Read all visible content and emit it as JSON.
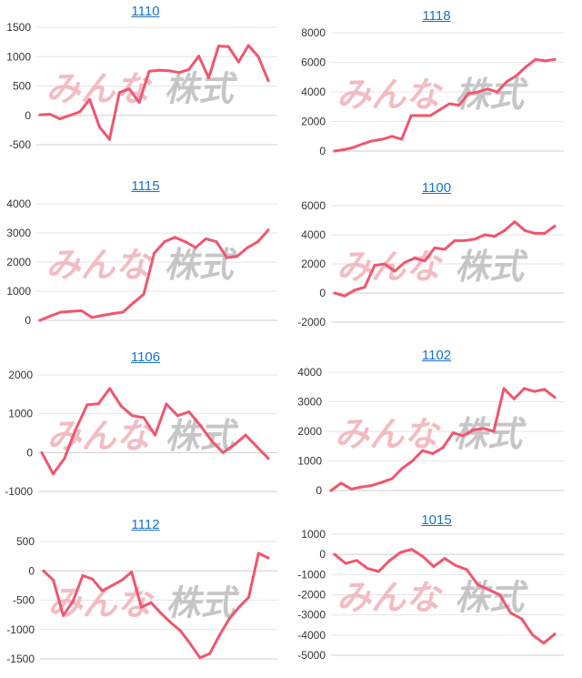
{
  "colors": {
    "line": "#f0566f",
    "grid": "#e6e6e6",
    "axis": "#cfcfcf",
    "link": "#1a73c8",
    "watermark_left": "#f2b1b8",
    "watermark_right": "#bdbdbd"
  },
  "watermark": {
    "left": "みんな",
    "right": "株式"
  },
  "chart_data": [
    {
      "type": "line",
      "title": "1110",
      "ylim": [
        -500,
        1500
      ],
      "yticks": [
        "1500",
        "1000",
        "500",
        "0",
        "-500"
      ],
      "ytick_values": [
        1500,
        1000,
        500,
        0,
        -500
      ],
      "values": [
        10,
        20,
        -60,
        0,
        60,
        270,
        -200,
        -410,
        390,
        450,
        220,
        750,
        770,
        760,
        730,
        780,
        1010,
        640,
        1180,
        1170,
        910,
        1190,
        1000,
        590
      ]
    },
    {
      "type": "line",
      "title": "1118",
      "ylim": [
        0,
        8000
      ],
      "yticks": [
        "8000",
        "6000",
        "4000",
        "2000",
        "0"
      ],
      "ytick_values": [
        8000,
        6000,
        4000,
        2000,
        0
      ],
      "values": [
        0,
        100,
        250,
        500,
        700,
        800,
        1000,
        800,
        2400,
        2400,
        2400,
        2800,
        3200,
        3100,
        3900,
        4000,
        4200,
        4000,
        4700,
        5100,
        5700,
        6200,
        6100,
        6200
      ]
    },
    {
      "type": "line",
      "title": "1115",
      "ylim": [
        0,
        4000
      ],
      "yticks": [
        "4000",
        "3000",
        "2000",
        "1000",
        "0"
      ],
      "ytick_values": [
        4000,
        3000,
        2000,
        1000,
        0
      ],
      "values": [
        0,
        150,
        280,
        310,
        330,
        100,
        170,
        230,
        280,
        600,
        900,
        2300,
        2700,
        2850,
        2700,
        2500,
        2800,
        2700,
        2150,
        2200,
        2500,
        2700,
        3100
      ]
    },
    {
      "type": "line",
      "title": "1100",
      "ylim": [
        -2000,
        6000
      ],
      "yticks": [
        "6000",
        "4000",
        "2000",
        "0",
        "-2000"
      ],
      "ytick_values": [
        6000,
        4000,
        2000,
        0,
        -2000
      ],
      "values": [
        0,
        -200,
        200,
        400,
        1900,
        2000,
        1500,
        2100,
        2400,
        2200,
        3100,
        3000,
        3600,
        3600,
        3700,
        4000,
        3900,
        4300,
        4900,
        4300,
        4100,
        4100,
        4600
      ]
    },
    {
      "type": "line",
      "title": "1106",
      "ylim": [
        -1000,
        2000
      ],
      "yticks": [
        "2000",
        "1000",
        "0",
        "-1000"
      ],
      "ytick_values": [
        2000,
        1000,
        0,
        -1000
      ],
      "values": [
        0,
        -550,
        -150,
        600,
        1230,
        1260,
        1650,
        1200,
        950,
        900,
        450,
        1250,
        950,
        1050,
        700,
        300,
        0,
        200,
        450,
        150,
        -150
      ]
    },
    {
      "type": "line",
      "title": "1102",
      "ylim": [
        0,
        4000
      ],
      "yticks": [
        "4000",
        "3000",
        "2000",
        "1000",
        "0"
      ],
      "ytick_values": [
        4000,
        3000,
        2000,
        1000,
        0
      ],
      "values": [
        0,
        250,
        50,
        120,
        170,
        280,
        400,
        750,
        1000,
        1350,
        1250,
        1450,
        1950,
        1850,
        2050,
        2100,
        2000,
        3450,
        3100,
        3450,
        3350,
        3420,
        3150
      ]
    },
    {
      "type": "line",
      "title": "1112",
      "ylim": [
        -1500,
        500
      ],
      "yticks": [
        "500",
        "0",
        "-500",
        "-1000",
        "-1500"
      ],
      "ytick_values": [
        500,
        0,
        -500,
        -1000,
        -1500
      ],
      "values": [
        0,
        -160,
        -760,
        -520,
        -80,
        -140,
        -340,
        -250,
        -160,
        -20,
        -620,
        -540,
        -720,
        -880,
        -1020,
        -1240,
        -1480,
        -1410,
        -1100,
        -820,
        -620,
        -450,
        300,
        220
      ]
    },
    {
      "type": "line",
      "title": "1015",
      "ylim": [
        -5000,
        1000
      ],
      "yticks": [
        "1000",
        "0",
        "-1000",
        "-2000",
        "-3000",
        "-4000",
        "-5000"
      ],
      "ytick_values": [
        1000,
        0,
        -1000,
        -2000,
        -3000,
        -4000,
        -5000
      ],
      "values": [
        0,
        -450,
        -300,
        -700,
        -850,
        -300,
        100,
        250,
        -100,
        -600,
        -200,
        -550,
        -750,
        -1500,
        -1750,
        -2000,
        -2900,
        -3200,
        -4000,
        -4400,
        -3950
      ]
    }
  ]
}
